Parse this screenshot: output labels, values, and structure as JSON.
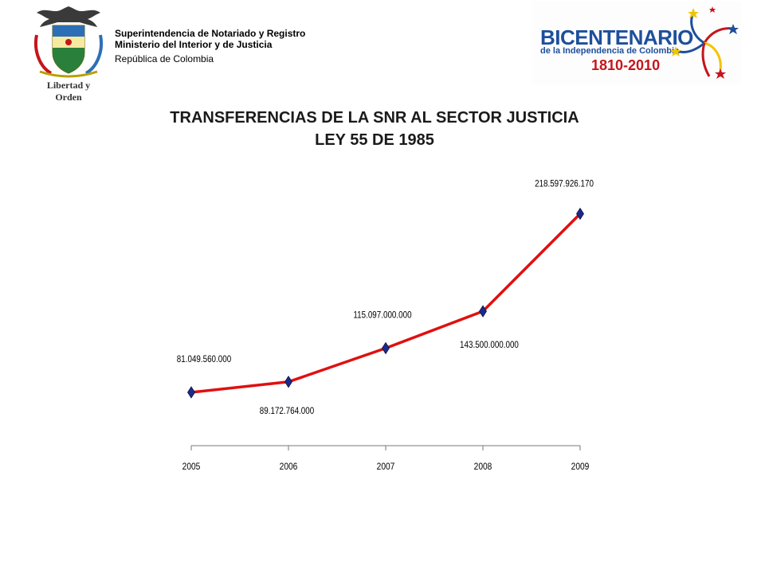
{
  "header": {
    "org_line1": "Superintendencia de Notariado y Registro",
    "org_line2": "Ministerio del Interior y de Justicia",
    "org_line3": "República de Colombia",
    "crest_motto": "Libertad y Orden"
  },
  "bicentenario": {
    "title": "BICENTENARIO",
    "subtitle": "de la Independencia de Colombia",
    "years": "1810-2010",
    "colors": {
      "blue": "#1d4f9c",
      "red": "#c4161c",
      "yellow": "#f2c400"
    }
  },
  "chart_data": {
    "type": "line",
    "title": "TRANSFERENCIAS DE LA SNR AL SECTOR JUSTICIA",
    "subtitle": "LEY 55 DE 1985",
    "xlabel": "",
    "ylabel": "",
    "categories": [
      "2005",
      "2006",
      "2007",
      "2008",
      "2009"
    ],
    "values": [
      81049560000,
      89172764000,
      115097000000,
      143500000000,
      218597926170
    ],
    "data_labels": [
      "81.049.560.000",
      "89.172.764.000",
      "115.097.000.000",
      "143.500.000.000",
      "218.597.926.170"
    ],
    "label_positions": [
      "above",
      "below",
      "above",
      "below",
      "above"
    ],
    "ylim": [
      0,
      240000000000
    ],
    "grid": false,
    "line_color": "#e01010",
    "marker_color": "#1b2a8a",
    "marker": "diamond"
  }
}
